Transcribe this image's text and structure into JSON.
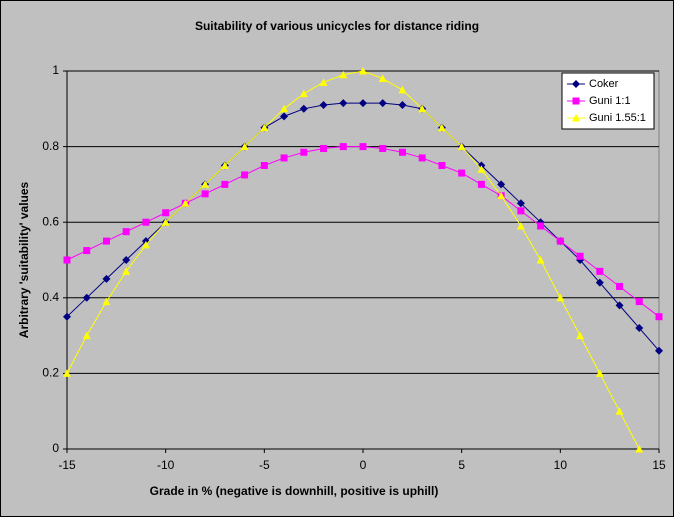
{
  "chart_data": {
    "type": "line",
    "title": "Suitability of various unicycles for distance riding",
    "x_label": "Grade in % (negative is downhill, positive is uphill)",
    "y_label": "Arbitrary 'suitability' values",
    "x": [
      -15,
      -14,
      -13,
      -12,
      -11,
      -10,
      -9,
      -8,
      -7,
      -6,
      -5,
      -4,
      -3,
      -2,
      -1,
      0,
      1,
      2,
      3,
      4,
      5,
      6,
      7,
      8,
      9,
      10,
      11,
      12,
      13,
      14,
      15
    ],
    "series": [
      {
        "name": "Coker",
        "color": "#000080",
        "marker": "diamond",
        "values": [
          0.35,
          0.4,
          0.45,
          0.5,
          0.55,
          0.6,
          0.65,
          0.7,
          0.75,
          0.8,
          0.85,
          0.88,
          0.9,
          0.91,
          0.915,
          0.915,
          0.915,
          0.91,
          0.9,
          0.85,
          0.8,
          0.75,
          0.7,
          0.65,
          0.6,
          0.55,
          0.5,
          0.44,
          0.38,
          0.32,
          0.26
        ]
      },
      {
        "name": "Guni 1:1",
        "color": "#ff00ff",
        "marker": "square",
        "values": [
          0.5,
          0.525,
          0.55,
          0.575,
          0.6,
          0.625,
          0.65,
          0.675,
          0.7,
          0.725,
          0.75,
          0.77,
          0.785,
          0.795,
          0.8,
          0.8,
          0.795,
          0.785,
          0.77,
          0.75,
          0.73,
          0.7,
          0.67,
          0.63,
          0.59,
          0.55,
          0.51,
          0.47,
          0.43,
          0.39,
          0.35
        ]
      },
      {
        "name": "Guni 1.55:1",
        "color": "#ffff00",
        "marker": "triangle",
        "values": [
          0.2,
          0.3,
          0.39,
          0.47,
          0.54,
          0.6,
          0.65,
          0.7,
          0.75,
          0.8,
          0.85,
          0.9,
          0.94,
          0.97,
          0.99,
          1.0,
          0.98,
          0.95,
          0.9,
          0.85,
          0.8,
          0.74,
          0.67,
          0.59,
          0.5,
          0.4,
          0.3,
          0.2,
          0.1,
          0.0,
          null
        ]
      }
    ],
    "xlim": [
      -15,
      15
    ],
    "xticks": [
      -15,
      -10,
      -5,
      0,
      5,
      10,
      15
    ],
    "ylim": [
      0,
      1
    ],
    "yticks": [
      0,
      0.2,
      0.4,
      0.6,
      0.8,
      1
    ],
    "grid": true,
    "legend": "top-right"
  }
}
